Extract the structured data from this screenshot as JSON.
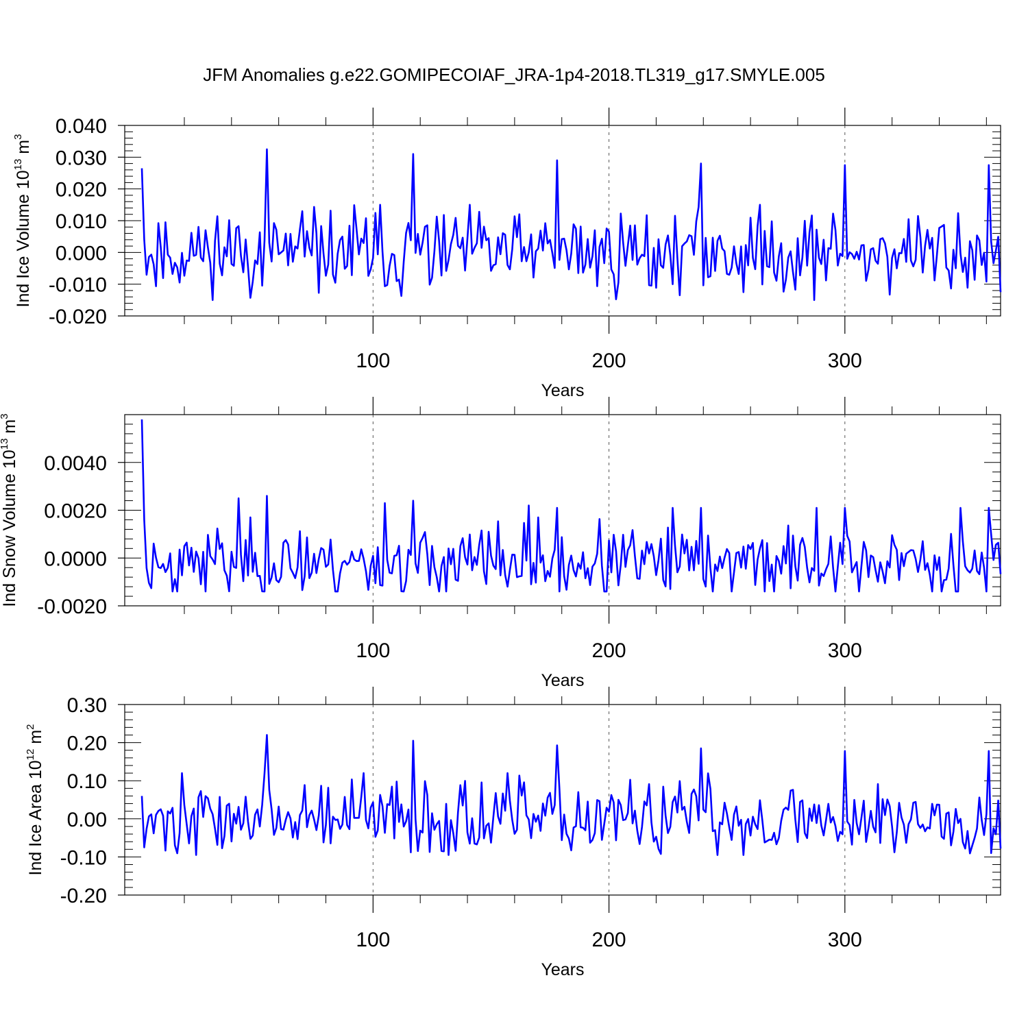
{
  "chart_data": {
    "title": "JFM Anomalies g.e22.GOMIPECOIAF_JRA-1p4-2018.TL319_g17.SMYLE.005",
    "type": "line",
    "x_start": 2,
    "x_end": 366,
    "line_color": "#0000ff",
    "panels": [
      {
        "ylabel": {
          "pre": "Ind Ice Volume 10",
          "exp": "13",
          "mid": " m",
          "unit_exp": "3"
        },
        "xlabel": "Years",
        "xlim": [
          2,
          366
        ],
        "xticks": [
          "100",
          "200",
          "300"
        ],
        "ylim": [
          -0.02,
          0.04
        ],
        "yticks": [
          "0.040",
          "0.030",
          "0.020",
          "0.010",
          "0.000",
          "-0.010",
          "-0.020"
        ],
        "seed": 11,
        "base": {
          "mean": 0.0,
          "sd": 0.0065,
          "clip": [
            -0.015,
            0.015
          ]
        },
        "special": [
          {
            "x": 2,
            "y": 0.0265
          },
          {
            "x": 55,
            "y": 0.0325
          },
          {
            "x": 117,
            "y": 0.031
          },
          {
            "x": 178,
            "y": 0.029
          },
          {
            "x": 239,
            "y": 0.028
          },
          {
            "x": 300,
            "y": 0.0275
          },
          {
            "x": 361,
            "y": 0.0275
          },
          {
            "x": 366,
            "y": -0.0125
          }
        ]
      },
      {
        "ylabel": {
          "pre": "Ind Snow Volume 10",
          "exp": "13",
          "mid": " m",
          "unit_exp": "3"
        },
        "xlabel": "Years",
        "xlim": [
          2,
          366
        ],
        "xticks": [
          "100",
          "200",
          "300"
        ],
        "ylim": [
          -0.002,
          0.006
        ],
        "yticks": [
          "0.0040",
          "0.0020",
          "0.0000",
          "-0.0020"
        ],
        "seed": 23,
        "base": {
          "mean": -0.0002,
          "sd": 0.00075,
          "clip": [
            -0.0014,
            0.0017
          ]
        },
        "special": [
          {
            "x": 2,
            "y": 0.0058
          },
          {
            "x": 3,
            "y": 0.0016
          },
          {
            "x": 43,
            "y": 0.0025
          },
          {
            "x": 55,
            "y": 0.0026
          },
          {
            "x": 105,
            "y": 0.0023
          },
          {
            "x": 117,
            "y": 0.0024
          },
          {
            "x": 166,
            "y": 0.0022
          },
          {
            "x": 178,
            "y": 0.0021
          },
          {
            "x": 227,
            "y": 0.0021
          },
          {
            "x": 239,
            "y": 0.0021
          },
          {
            "x": 288,
            "y": 0.0021
          },
          {
            "x": 300,
            "y": 0.0021
          },
          {
            "x": 349,
            "y": 0.0021
          },
          {
            "x": 361,
            "y": 0.0021
          }
        ]
      },
      {
        "ylabel": {
          "pre": "Ind Ice Area 10",
          "exp": "12",
          "mid": " m",
          "unit_exp": "2"
        },
        "xlabel": "Years",
        "xlim": [
          2,
          366
        ],
        "xticks": [
          "100",
          "200",
          "300"
        ],
        "ylim": [
          -0.2,
          0.3
        ],
        "yticks": [
          "0.30",
          "0.20",
          "0.10",
          "0.00",
          "-0.10",
          "-0.20"
        ],
        "seed": 37,
        "base": {
          "mean": 0.0,
          "sd": 0.05,
          "clip": [
            -0.095,
            0.12
          ]
        },
        "special": [
          {
            "x": 2,
            "y": 0.06
          },
          {
            "x": 3,
            "y": -0.075
          },
          {
            "x": 55,
            "y": 0.22
          },
          {
            "x": 117,
            "y": 0.205
          },
          {
            "x": 178,
            "y": 0.193
          },
          {
            "x": 239,
            "y": 0.185
          },
          {
            "x": 300,
            "y": 0.178
          },
          {
            "x": 361,
            "y": 0.178
          },
          {
            "x": 366,
            "y": -0.078
          }
        ]
      }
    ]
  }
}
